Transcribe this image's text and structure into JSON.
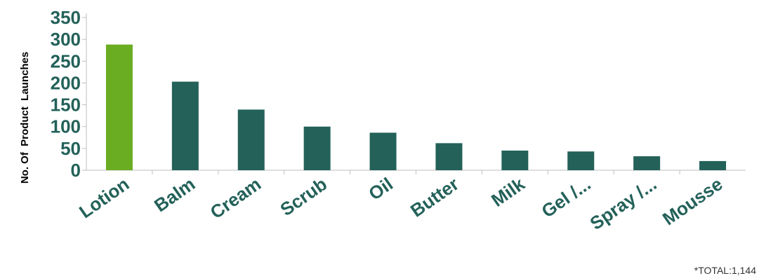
{
  "chart_data": {
    "type": "bar",
    "title": "",
    "ylabel": "No. Of  Product  Launches",
    "xlabel": "",
    "categories": [
      "Lotion",
      "Balm",
      "Cream",
      "Scrub",
      "Oil",
      "Butter",
      "Milk",
      "Gel /...",
      "Spray /...",
      "Mousse"
    ],
    "values": [
      288,
      203,
      139,
      100,
      86,
      62,
      45,
      43,
      32,
      21
    ],
    "ylim": [
      0,
      350
    ],
    "yticks": [
      "0",
      "50",
      "100",
      "150",
      "200",
      "250",
      "300",
      "350"
    ],
    "grid": false,
    "legend": "none",
    "highlight_index": 0
  },
  "colors": {
    "bar": "#236159",
    "highlight": "#6aad22",
    "tick_text": "#236159",
    "axis": "#bfbfbf"
  },
  "footnote": "*TOTAL:1,144"
}
